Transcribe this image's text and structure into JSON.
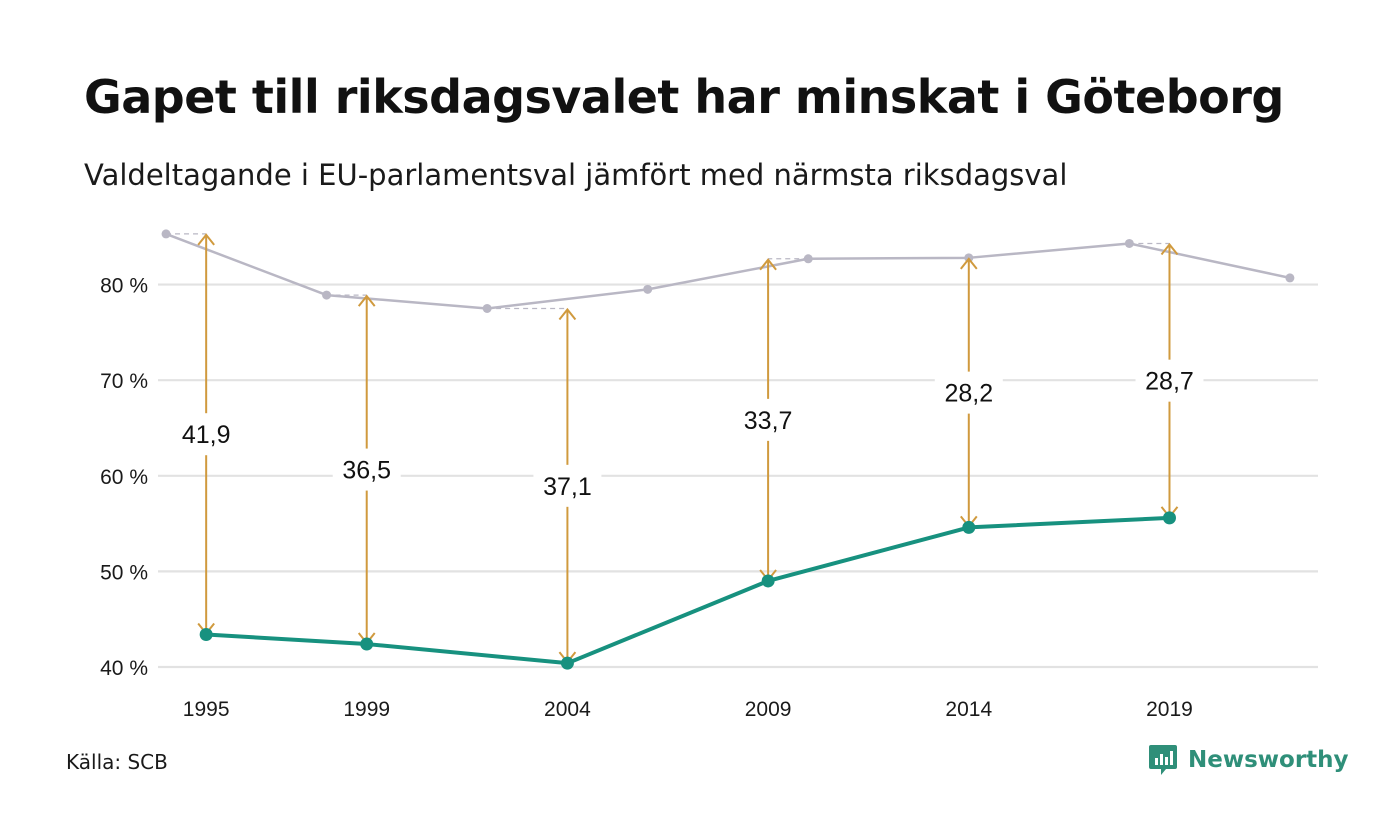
{
  "title": "Gapet till riksdagsvalet har minskat i Göteborg",
  "subtitle": "Valdeltagande i EU-parlamentsval jämfört med närmsta riksdagsval",
  "source": "Källa: SCB",
  "brand": {
    "name": "Newsworthy",
    "icon": "newsworthy-logo-icon"
  },
  "colors": {
    "eu": "#17917f",
    "riksdag": "#b9b7c4",
    "gap": "#d09a3e",
    "grid": "#e2e2e2"
  },
  "chart_data": {
    "type": "line",
    "ylim": [
      40,
      85.5
    ],
    "yticks": [
      40,
      50,
      60,
      70,
      80
    ],
    "ytick_labels": [
      "40 %",
      "50 %",
      "60 %",
      "70 %",
      "80 %"
    ],
    "xticks": [
      1995,
      1999,
      2004,
      2009,
      2014,
      2019
    ],
    "xtick_labels": [
      "1995",
      "1999",
      "2004",
      "2009",
      "2014",
      "2019"
    ],
    "xlim": [
      1993.8,
      2022.7
    ],
    "grid": true,
    "series": [
      {
        "key": "riksdag",
        "x": [
          1994,
          1998,
          2002,
          2006,
          2010,
          2014,
          2018,
          2022
        ],
        "values": [
          85.3,
          78.9,
          77.5,
          79.5,
          82.7,
          82.8,
          84.3,
          80.7
        ]
      },
      {
        "key": "eu",
        "x": [
          1995,
          1999,
          2004,
          2009,
          2014,
          2019
        ],
        "values": [
          43.4,
          42.4,
          40.4,
          49.0,
          54.6,
          55.6
        ]
      }
    ],
    "gaps": [
      {
        "x": 1995,
        "ref_x": 1994,
        "label": "41,9"
      },
      {
        "x": 1999,
        "ref_x": 1998,
        "label": "36,5"
      },
      {
        "x": 2004,
        "ref_x": 2002,
        "label": "37,1"
      },
      {
        "x": 2009,
        "ref_x": 2010,
        "label": "33,7"
      },
      {
        "x": 2014,
        "ref_x": 2014,
        "label": "28,2"
      },
      {
        "x": 2019,
        "ref_x": 2018,
        "label": "28,7"
      }
    ]
  }
}
